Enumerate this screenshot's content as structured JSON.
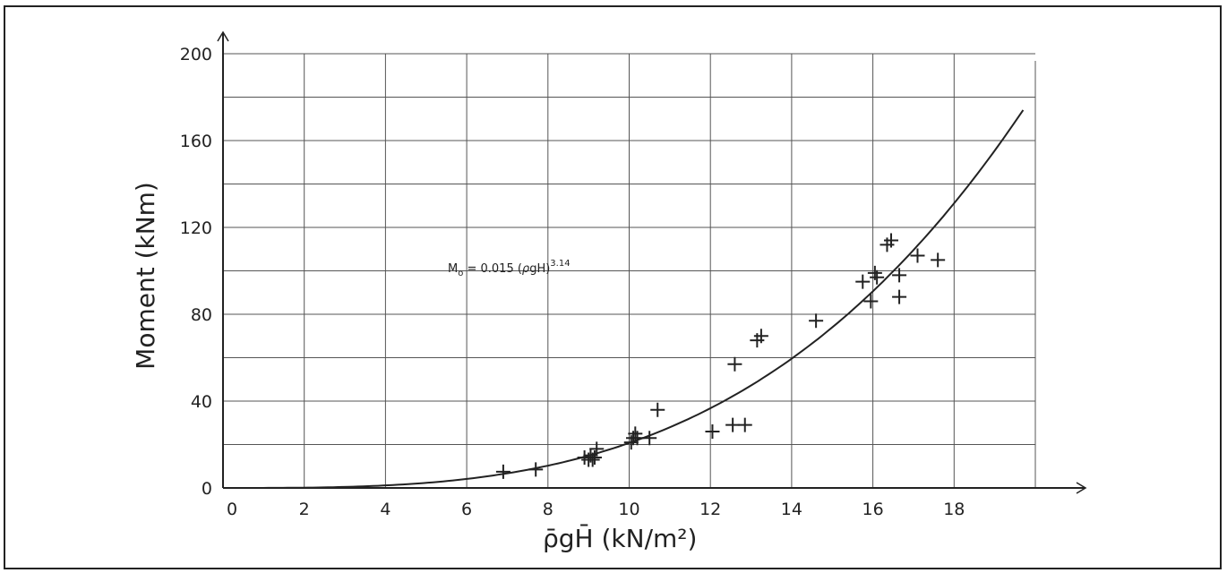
{
  "chart_data": {
    "type": "scatter",
    "xlabel": "ρ̄gH̄  (kN/m²)",
    "ylabel": "Moment  (kNm)",
    "xlim": [
      0,
      20
    ],
    "ylim": [
      0,
      200
    ],
    "x_ticks": [
      "0",
      "2",
      "4",
      "6",
      "8",
      "10",
      "12",
      "14",
      "16",
      "18"
    ],
    "y_ticks": [
      "0",
      "40",
      "80",
      "120",
      "160",
      "200"
    ],
    "grid": true,
    "marker": "plus",
    "series": [
      {
        "x": [
          6.9,
          7.7,
          8.9,
          9.0,
          9.05,
          9.1,
          9.15,
          9.2,
          10.05,
          10.1,
          10.15,
          10.2,
          10.5,
          10.7,
          12.05,
          12.55,
          12.85,
          12.6,
          13.15,
          13.25,
          14.6,
          15.75,
          15.95,
          16.05,
          16.1,
          16.35,
          16.45,
          16.65,
          16.65,
          17.1,
          17.6
        ],
        "y": [
          7.5,
          8.5,
          14,
          13,
          15,
          13,
          14,
          18,
          21,
          23,
          25,
          23,
          23,
          36,
          26,
          29,
          29,
          57,
          68,
          70,
          77,
          95,
          86,
          99,
          97,
          112,
          114,
          98,
          88,
          107,
          105
        ]
      }
    ],
    "fit_curve": {
      "coef": 0.015,
      "exponent": 3.14,
      "x_range": [
        0,
        19.7
      ]
    },
    "annotation": {
      "M": "M",
      "sub": "o",
      "body": " = 0.015 (",
      "rho": "ρ",
      "gH": "gH",
      "close": ")",
      "sup": "3.14"
    },
    "colors": {
      "ink": "#222222",
      "grid": "#555555"
    }
  }
}
